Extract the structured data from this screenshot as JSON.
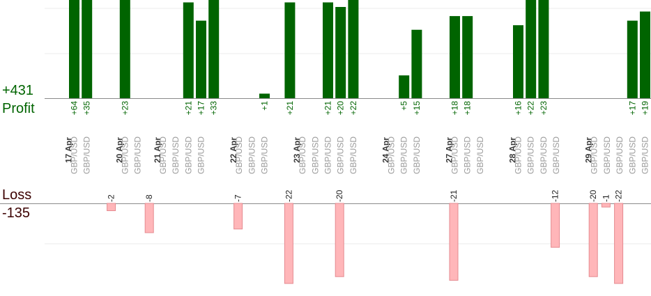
{
  "chart_data": {
    "type": "bar",
    "profit": {
      "label": "Profit",
      "total": "+431",
      "color": "#006400",
      "entries": [
        {
          "slot": 0,
          "value": 64,
          "label": "+64"
        },
        {
          "slot": 1,
          "value": 35,
          "label": "+35"
        },
        {
          "slot": 4,
          "value": 23,
          "label": "+23"
        },
        {
          "slot": 9,
          "value": 21,
          "label": "+21"
        },
        {
          "slot": 10,
          "value": 17,
          "label": "+17"
        },
        {
          "slot": 11,
          "value": 33,
          "label": "+33"
        },
        {
          "slot": 15,
          "value": 1,
          "label": "+1"
        },
        {
          "slot": 17,
          "value": 21,
          "label": "+21"
        },
        {
          "slot": 20,
          "value": 21,
          "label": "+21"
        },
        {
          "slot": 21,
          "value": 20,
          "label": "+20"
        },
        {
          "slot": 22,
          "value": 22,
          "label": "+22"
        },
        {
          "slot": 26,
          "value": 5,
          "label": "+5"
        },
        {
          "slot": 27,
          "value": 15,
          "label": "+15"
        },
        {
          "slot": 30,
          "value": 18,
          "label": "+18"
        },
        {
          "slot": 31,
          "value": 18,
          "label": "+18"
        },
        {
          "slot": 35,
          "value": 16,
          "label": "+16"
        },
        {
          "slot": 36,
          "value": 22,
          "label": "+22"
        },
        {
          "slot": 37,
          "value": 23,
          "label": "+23"
        },
        {
          "slot": 44,
          "value": 17,
          "label": "+17"
        },
        {
          "slot": 45,
          "value": 19,
          "label": "+19"
        }
      ]
    },
    "loss": {
      "label": "Loss",
      "total": "-135",
      "color": "#ffb6b9",
      "entries": [
        {
          "slot": 3,
          "value": -2,
          "label": "-2"
        },
        {
          "slot": 6,
          "value": -8,
          "label": "-8"
        },
        {
          "slot": 13,
          "value": -7,
          "label": "-7"
        },
        {
          "slot": 17,
          "value": -22,
          "label": "-22"
        },
        {
          "slot": 21,
          "value": -20,
          "label": "-20"
        },
        {
          "slot": 30,
          "value": -21,
          "label": "-21"
        },
        {
          "slot": 38,
          "value": -12,
          "label": "-12"
        },
        {
          "slot": 41,
          "value": -20,
          "label": "-20"
        },
        {
          "slot": 42,
          "value": -1,
          "label": "-1"
        },
        {
          "slot": 43,
          "value": -22,
          "label": "-22"
        }
      ]
    },
    "date_groups": [
      {
        "date": "17 Apr",
        "slot": 0,
        "pairs": [
          "GBP/USD",
          "GBP/USD"
        ]
      },
      {
        "date": "20 Apr",
        "slot": 4,
        "pairs": [
          "GBP/USD",
          "GBP/USD"
        ]
      },
      {
        "date": "21 Apr",
        "slot": 7,
        "pairs": [
          "GBP/USD",
          "GBP/USD",
          "GBP/USD",
          "GBP/USD"
        ]
      },
      {
        "date": "22 Apr",
        "slot": 13,
        "pairs": [
          "GBP/USD",
          "GBP/USD",
          "GBP/USD"
        ]
      },
      {
        "date": "23 Apr",
        "slot": 18,
        "pairs": [
          "GBP/USD",
          "GBP/USD",
          "GBP/USD",
          "GBP/USD",
          "GBP/USD"
        ]
      },
      {
        "date": "24 Apr",
        "slot": 25,
        "pairs": [
          "GBP/USD",
          "GBP/USD",
          "GBP/USD"
        ]
      },
      {
        "date": "27 Apr",
        "slot": 30,
        "pairs": [
          "GBP/USD",
          "GBP/USD",
          "GBP/USD"
        ]
      },
      {
        "date": "28 Apr",
        "slot": 35,
        "pairs": [
          "GBP/USD",
          "GBP/USD",
          "GBP/USD",
          "GBP/USD"
        ]
      },
      {
        "date": "29 Apr",
        "slot": 41,
        "pairs": [
          "GBP/USD",
          "GBP/USD",
          "GBP/USD",
          "GBP/USD",
          "GBP/USD"
        ]
      }
    ],
    "grid": true
  }
}
